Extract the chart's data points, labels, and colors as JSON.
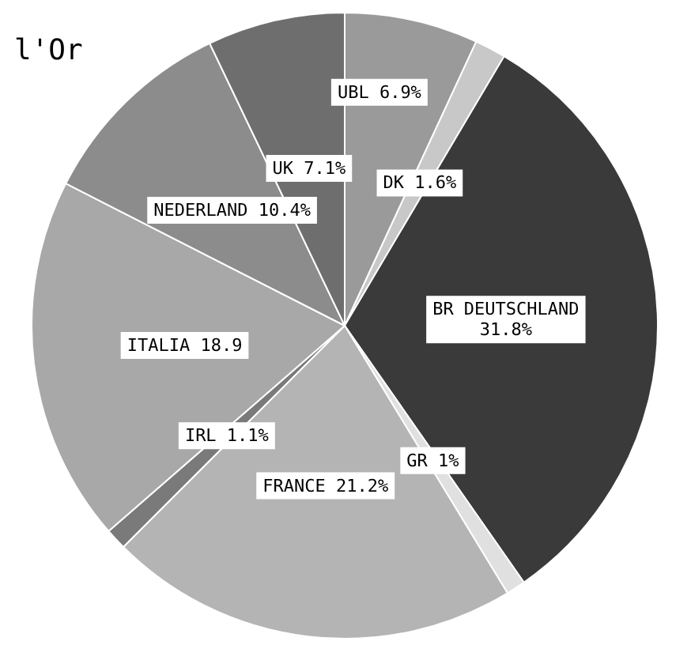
{
  "chart_data": {
    "type": "pie",
    "title": "l'Or",
    "categories": [
      "UBL",
      "DK",
      "BR DEUTSCHLAND",
      "GR",
      "FRANCE",
      "IRL",
      "ITALIA",
      "NEDERLAND",
      "UK"
    ],
    "values": [
      6.9,
      1.6,
      31.8,
      1,
      21.2,
      1.1,
      18.9,
      10.4,
      7.1
    ],
    "value_labels": [
      "6.9%",
      "1.6%",
      "31.8%",
      "1%",
      "21.2%",
      "1.1%",
      "18.9",
      "10.4%",
      "7.1%"
    ],
    "colors": [
      "#9a9a9a",
      "#c8c8c8",
      "#3a3a3a",
      "#e0e0e0",
      "#b4b4b4",
      "#7a7a7a",
      "#a8a8a8",
      "#8c8c8c",
      "#6e6e6e"
    ]
  }
}
